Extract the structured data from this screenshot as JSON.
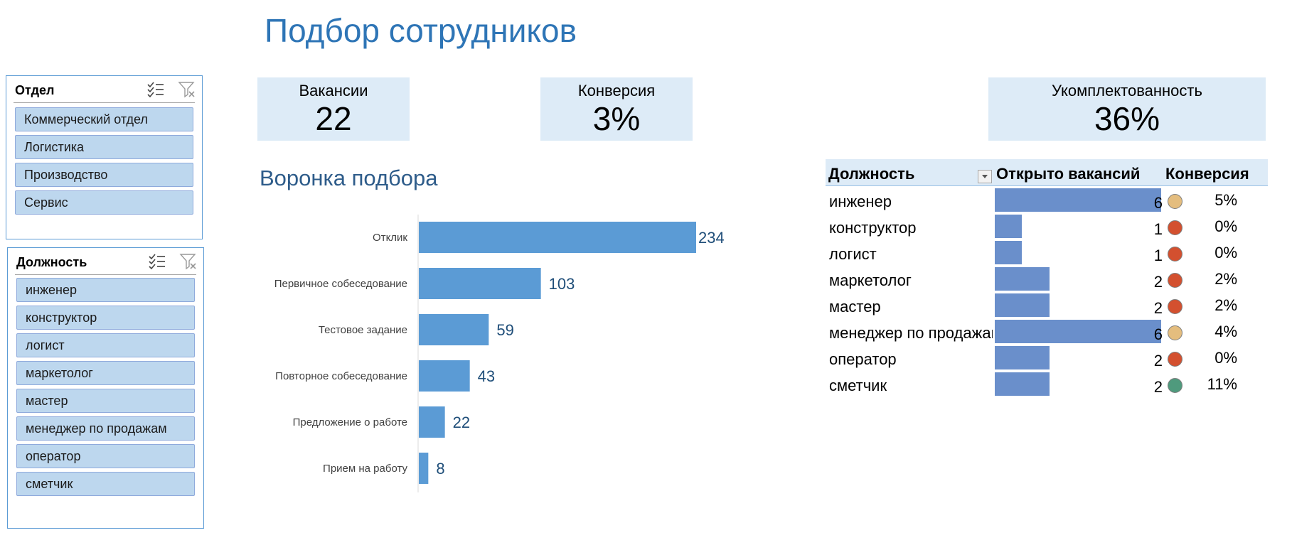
{
  "title": "Подбор сотрудников",
  "slicers": {
    "department": {
      "title": "Отдел",
      "items": [
        "Коммерческий отдел",
        "Логистика",
        "Производство",
        "Сервис"
      ]
    },
    "position": {
      "title": "Должность",
      "items": [
        "инженер",
        "конструктор",
        "логист",
        "маркетолог",
        "мастер",
        "менеджер по продажам",
        "оператор",
        "сметчик"
      ]
    },
    "multiselect_icon": "multi-select-icon",
    "clear_filter_icon": "clear-filter-icon"
  },
  "kpis": {
    "vacancies": {
      "label": "Вакансии",
      "value": "22"
    },
    "conversion": {
      "label": "Конверсия",
      "value": "3%"
    },
    "staffing": {
      "label": "Укомплектованность",
      "value": "36%"
    }
  },
  "funnel": {
    "title": "Воронка подбора"
  },
  "chart_data": {
    "type": "bar",
    "orientation": "horizontal",
    "title": "Воронка подбора",
    "categories": [
      "Отклик",
      "Первичное собеседование",
      "Тестовое задание",
      "Повторное собеседование",
      "Предложение о работе",
      "Прием на работу"
    ],
    "values": [
      234,
      103,
      59,
      43,
      22,
      8
    ],
    "data_labels": true,
    "color": "#5b9bd5",
    "label_color": "#1f4e79"
  },
  "table": {
    "headers": {
      "position": "Должность",
      "open": "Открыто вакансий",
      "conversion": "Конверсия"
    },
    "bar_max": 6,
    "rows": [
      {
        "name": "инженер",
        "open": 6,
        "open_label": "6",
        "status": "#e4bd7e",
        "conversion": "5%"
      },
      {
        "name": "конструктор",
        "open": 1,
        "open_label": "1",
        "status": "#d3502f",
        "conversion": "0%"
      },
      {
        "name": "логист",
        "open": 1,
        "open_label": "1",
        "status": "#d3502f",
        "conversion": "0%"
      },
      {
        "name": "маркетолог",
        "open": 2,
        "open_label": "2",
        "status": "#d3502f",
        "conversion": "2%"
      },
      {
        "name": "мастер",
        "open": 2,
        "open_label": "2",
        "status": "#d3502f",
        "conversion": "2%"
      },
      {
        "name": "менеджер по продажам",
        "open": 6,
        "open_label": "6",
        "status": "#e4bd7e",
        "conversion": "4%"
      },
      {
        "name": "оператор",
        "open": 2,
        "open_label": "2",
        "status": "#d3502f",
        "conversion": "0%"
      },
      {
        "name": "сметчик",
        "open": 2,
        "open_label": "2",
        "status": "#4f9a7d",
        "conversion": "11%"
      }
    ]
  }
}
